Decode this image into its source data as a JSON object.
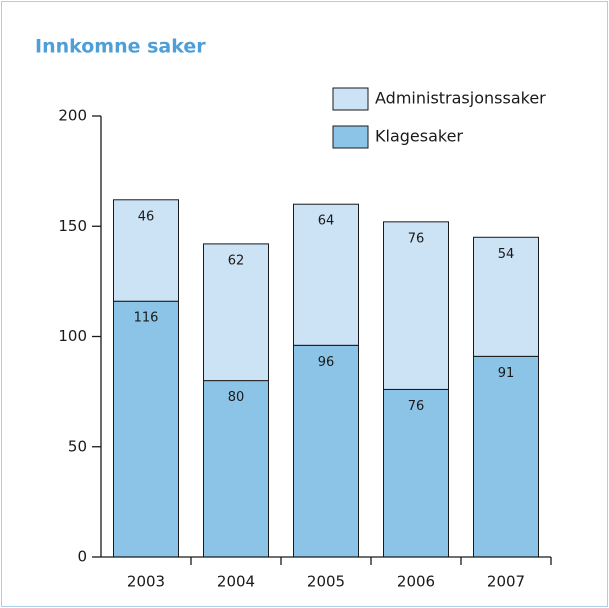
{
  "chart_data": {
    "type": "stacked_bar",
    "title": "Innkomne saker",
    "categories": [
      "2003",
      "2004",
      "2005",
      "2006",
      "2007"
    ],
    "series": [
      {
        "name": "Klagesaker",
        "color": "#8cc4e8",
        "values": [
          116,
          80,
          96,
          76,
          91
        ]
      },
      {
        "name": "Administrasjonssaker",
        "color": "#cce3f5",
        "values": [
          46,
          62,
          64,
          76,
          54
        ]
      }
    ],
    "ylim": [
      0,
      200
    ],
    "yticks": [
      0,
      50,
      100,
      150,
      200
    ],
    "legend": "top-right"
  }
}
